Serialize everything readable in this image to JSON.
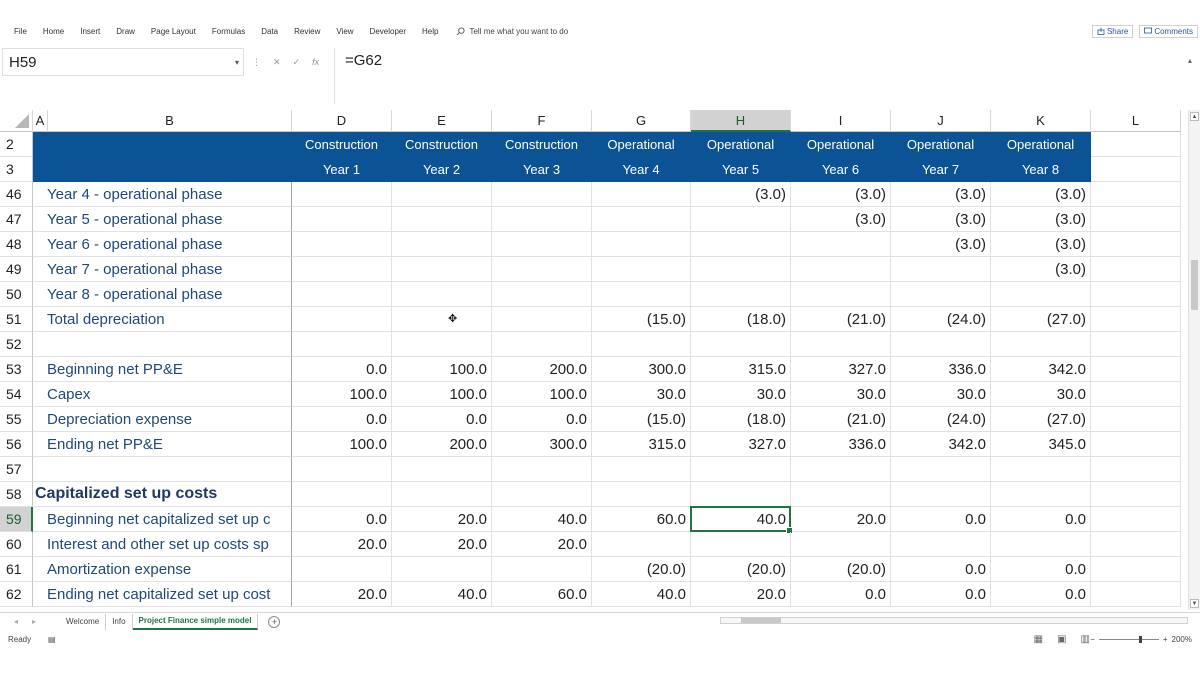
{
  "ribbon": {
    "tabs": [
      "File",
      "Home",
      "Insert",
      "Draw",
      "Page Layout",
      "Formulas",
      "Data",
      "Review",
      "View",
      "Developer",
      "Help"
    ],
    "tell_me": "Tell me what you want to do",
    "share": "Share",
    "comments": "Comments"
  },
  "formula_bar": {
    "name_box": "H59",
    "fx": "fx",
    "formula": "=G62"
  },
  "columns": [
    "A",
    "B",
    "D",
    "E",
    "F",
    "G",
    "H",
    "I",
    "J",
    "K",
    "L"
  ],
  "selected_column": "H",
  "header_rows": {
    "row2": {
      "num": "2",
      "cells": [
        "",
        "Construction",
        "Construction",
        "Construction",
        "Operational",
        "Operational",
        "Operational",
        "Operational",
        "Operational"
      ]
    },
    "row3": {
      "num": "3",
      "cells": [
        "",
        "Year 1",
        "Year 2",
        "Year 3",
        "Year 4",
        "Year 5",
        "Year 6",
        "Year 7",
        "Year 8"
      ]
    }
  },
  "rows": [
    {
      "num": "46",
      "label": "Year 4 - operational phase",
      "values": [
        "",
        "",
        "",
        "",
        "(3.0)",
        "(3.0)",
        "(3.0)",
        "(3.0)"
      ]
    },
    {
      "num": "47",
      "label": "Year 5 - operational phase",
      "values": [
        "",
        "",
        "",
        "",
        "",
        "(3.0)",
        "(3.0)",
        "(3.0)"
      ]
    },
    {
      "num": "48",
      "label": "Year 6 - operational phase",
      "values": [
        "",
        "",
        "",
        "",
        "",
        "",
        "(3.0)",
        "(3.0)"
      ]
    },
    {
      "num": "49",
      "label": "Year 7 - operational phase",
      "values": [
        "",
        "",
        "",
        "",
        "",
        "",
        "",
        "(3.0)"
      ]
    },
    {
      "num": "50",
      "label": "Year 8 - operational phase",
      "values": [
        "",
        "",
        "",
        "",
        "",
        "",
        "",
        ""
      ]
    },
    {
      "num": "51",
      "label": "Total depreciation",
      "values": [
        "",
        "",
        "",
        "(15.0)",
        "(18.0)",
        "(21.0)",
        "(24.0)",
        "(27.0)"
      ]
    },
    {
      "num": "52",
      "label": "",
      "values": [
        "",
        "",
        "",
        "",
        "",
        "",
        "",
        ""
      ]
    },
    {
      "num": "53",
      "label": "Beginning net PP&E",
      "values": [
        "0.0",
        "100.0",
        "200.0",
        "300.0",
        "315.0",
        "327.0",
        "336.0",
        "342.0"
      ]
    },
    {
      "num": "54",
      "label": "Capex",
      "values": [
        "100.0",
        "100.0",
        "100.0",
        "30.0",
        "30.0",
        "30.0",
        "30.0",
        "30.0"
      ]
    },
    {
      "num": "55",
      "label": "Depreciation expense",
      "values": [
        "0.0",
        "0.0",
        "0.0",
        "(15.0)",
        "(18.0)",
        "(21.0)",
        "(24.0)",
        "(27.0)"
      ]
    },
    {
      "num": "56",
      "label": "Ending net PP&E",
      "values": [
        "100.0",
        "200.0",
        "300.0",
        "315.0",
        "327.0",
        "336.0",
        "342.0",
        "345.0"
      ]
    },
    {
      "num": "57",
      "label": "",
      "values": [
        "",
        "",
        "",
        "",
        "",
        "",
        "",
        ""
      ]
    },
    {
      "num": "58",
      "section": "Capitalized set up costs",
      "values": [
        "",
        "",
        "",
        "",
        "",
        "",
        "",
        ""
      ]
    },
    {
      "num": "59",
      "label": "Beginning net capitalized set up c",
      "values": [
        "0.0",
        "20.0",
        "40.0",
        "60.0",
        "40.0",
        "20.0",
        "0.0",
        "0.0"
      ]
    },
    {
      "num": "60",
      "label": "Interest and other set up costs sp",
      "values": [
        "20.0",
        "20.0",
        "20.0",
        "",
        "",
        "",
        "",
        ""
      ]
    },
    {
      "num": "61",
      "label": "Amortization expense",
      "values": [
        "",
        "",
        "",
        "(20.0)",
        "(20.0)",
        "(20.0)",
        "0.0",
        "0.0"
      ]
    },
    {
      "num": "62",
      "label": "Ending net capitalized set up cost",
      "values": [
        "20.0",
        "40.0",
        "60.0",
        "40.0",
        "20.0",
        "0.0",
        "0.0",
        "0.0"
      ]
    }
  ],
  "selected_row": "59",
  "sheets": [
    "Welcome",
    "Info",
    "Project Finance simple model"
  ],
  "active_sheet": "Project Finance simple model",
  "status": {
    "ready": "Ready",
    "zoom": "200%"
  },
  "colors": {
    "header_fill": "#0b5394",
    "label_text": "#1f497d",
    "selection": "#217346"
  },
  "icons": [
    "search-icon",
    "share-icon",
    "comment-icon",
    "add-sheet-icon",
    "normal-view-icon",
    "page-layout-icon",
    "page-break-icon",
    "move-cursor-icon"
  ]
}
